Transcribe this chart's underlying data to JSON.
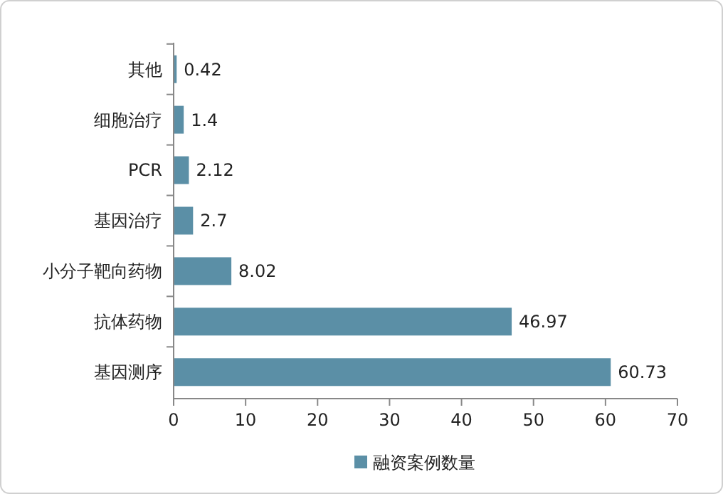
{
  "chart_data": {
    "type": "bar",
    "orientation": "horizontal",
    "categories": [
      "其他",
      "细胞治疗",
      "PCR",
      "基因治疗",
      "小分子靶向药物",
      "抗体药物",
      "基因测序"
    ],
    "series": [
      {
        "name": "融资案例数量",
        "color": "#5b8fa6",
        "values": [
          0.42,
          1.4,
          2.12,
          2.7,
          8.02,
          46.97,
          60.73
        ]
      }
    ],
    "xlim": [
      0,
      70
    ],
    "xticks": [
      0,
      10,
      20,
      30,
      40,
      50,
      60,
      70
    ],
    "data_labels": true,
    "legend": "bottom",
    "grid": false
  }
}
